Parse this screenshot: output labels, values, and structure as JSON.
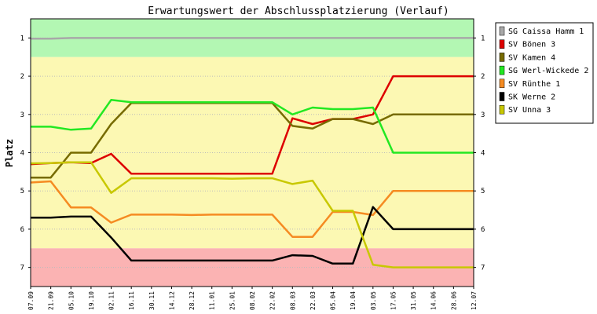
{
  "chart_data": {
    "type": "line",
    "title": "Erwartungswert der Abschlussplatzierung (Verlauf)",
    "xlabel": "",
    "ylabel": "Platz",
    "ylim": [
      0.5,
      7.5
    ],
    "y_inverted": true,
    "yticks": [
      1,
      2,
      3,
      4,
      5,
      6,
      7
    ],
    "grid": true,
    "legend_position": "right",
    "zones": [
      {
        "from": 0.5,
        "to": 1.5,
        "color": "#b3f7b3"
      },
      {
        "from": 1.5,
        "to": 6.5,
        "color": "#fcf8b3"
      },
      {
        "from": 6.5,
        "to": 7.5,
        "color": "#fbb3b3"
      }
    ],
    "categories": [
      "07.09",
      "21.09",
      "05.10",
      "19.10",
      "02.11",
      "16.11",
      "30.11",
      "14.12",
      "28.12",
      "11.01",
      "25.01",
      "08.02",
      "22.02",
      "08.03",
      "22.03",
      "05.04",
      "19.04",
      "03.05",
      "17.05",
      "31.05",
      "14.06",
      "28.06",
      "12.07"
    ],
    "series": [
      {
        "name": "SG Caissa Hamm 1",
        "color": "#a8a8a8",
        "values": [
          1.02,
          1.02,
          1.0,
          1.0,
          1.0,
          1.0,
          1.0,
          1.0,
          1.0,
          1.0,
          1.0,
          1.0,
          1.0,
          1.0,
          1.0,
          1.0,
          1.0,
          1.0,
          1.0,
          1.0,
          1.0,
          1.0,
          1.0
        ]
      },
      {
        "name": "SV Bönen 3",
        "color": "#dd0000",
        "values": [
          4.3,
          4.27,
          4.25,
          4.27,
          4.03,
          4.55,
          4.55,
          4.55,
          4.55,
          4.55,
          4.55,
          4.55,
          4.55,
          3.1,
          3.25,
          3.12,
          3.12,
          3.0,
          2.0,
          2.0,
          2.0,
          2.0,
          2.0
        ]
      },
      {
        "name": "SV Kamen 4",
        "color": "#776b00",
        "values": [
          4.65,
          4.65,
          4.0,
          4.0,
          3.25,
          2.7,
          2.7,
          2.7,
          2.7,
          2.7,
          2.7,
          2.7,
          2.7,
          3.3,
          3.37,
          3.12,
          3.12,
          3.25,
          3.0,
          3.0,
          3.0,
          3.0,
          3.0
        ]
      },
      {
        "name": "SG Werl-Wickede 2",
        "color": "#22e822",
        "values": [
          3.32,
          3.32,
          3.4,
          3.37,
          2.62,
          2.68,
          2.68,
          2.68,
          2.68,
          2.68,
          2.68,
          2.68,
          2.68,
          3.0,
          2.82,
          2.86,
          2.86,
          2.82,
          4.0,
          4.0,
          4.0,
          4.0,
          4.0
        ]
      },
      {
        "name": "SV Rünthe 1",
        "color": "#f58b22",
        "values": [
          4.78,
          4.75,
          5.43,
          5.43,
          5.83,
          5.62,
          5.62,
          5.62,
          5.63,
          5.62,
          5.62,
          5.62,
          5.62,
          6.2,
          6.2,
          5.55,
          5.55,
          5.63,
          5.0,
          5.0,
          5.0,
          5.0,
          5.0
        ]
      },
      {
        "name": "SK Werne 2",
        "color": "#000000",
        "values": [
          5.7,
          5.7,
          5.67,
          5.67,
          6.22,
          6.82,
          6.82,
          6.82,
          6.82,
          6.82,
          6.82,
          6.82,
          6.82,
          6.68,
          6.7,
          6.9,
          6.9,
          5.42,
          6.0,
          6.0,
          6.0,
          6.0,
          6.0
        ]
      },
      {
        "name": "SV Unna 3",
        "color": "#c8c800",
        "values": [
          4.28,
          4.27,
          4.25,
          4.25,
          5.05,
          4.67,
          4.67,
          4.67,
          4.67,
          4.67,
          4.68,
          4.67,
          4.67,
          4.82,
          4.73,
          5.52,
          5.52,
          6.93,
          7.0,
          7.0,
          7.0,
          7.0,
          7.0
        ]
      }
    ]
  }
}
